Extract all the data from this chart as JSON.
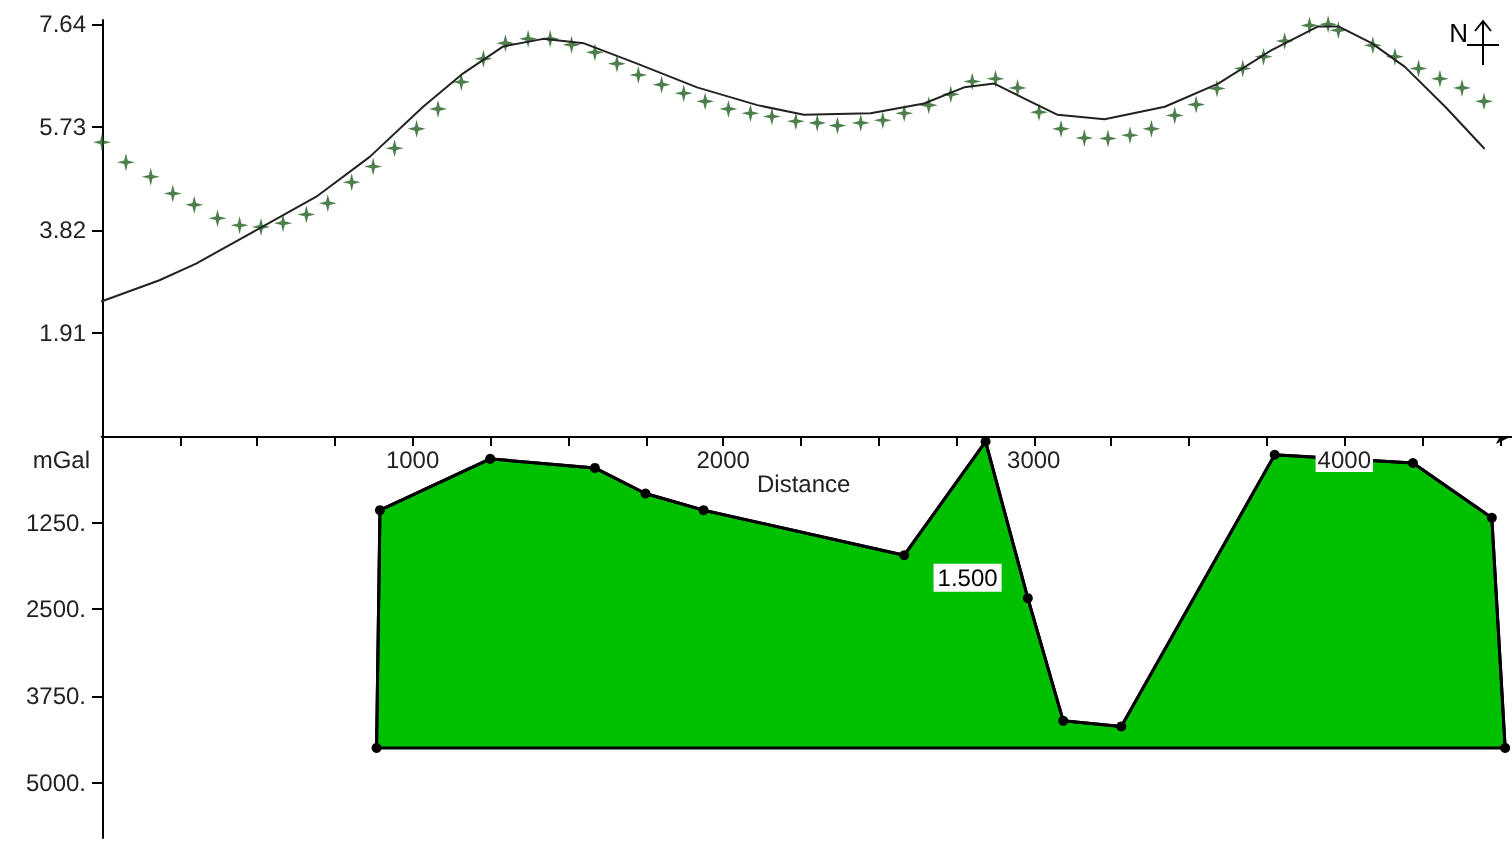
{
  "chart_data": [
    {
      "type": "scatter",
      "ylabel": "mGal",
      "xlim": [
        0,
        4540
      ],
      "xticks": [
        {
          "value": 0,
          "label": null
        },
        {
          "value": 250,
          "label": null
        },
        {
          "value": 500,
          "label": null
        },
        {
          "value": 750,
          "label": null
        },
        {
          "value": 1000,
          "label": null
        },
        {
          "value": 1250,
          "label": null
        },
        {
          "value": 1500,
          "label": null
        },
        {
          "value": 1750,
          "label": null
        },
        {
          "value": 2000,
          "label": null
        },
        {
          "value": 2250,
          "label": null
        },
        {
          "value": 2500,
          "label": null
        },
        {
          "value": 2750,
          "label": null
        },
        {
          "value": 3000,
          "label": null
        },
        {
          "value": 3250,
          "label": null
        },
        {
          "value": 3500,
          "label": null
        },
        {
          "value": 3750,
          "label": null
        },
        {
          "value": 4000,
          "label": null
        },
        {
          "value": 4250,
          "label": null
        },
        {
          "value": 4500,
          "label": null
        }
      ],
      "ylim": [
        0,
        7.72
      ],
      "yticks": [
        1.91,
        3.82,
        5.73,
        7.64
      ],
      "tick_labels": "y",
      "annotations": [
        "N"
      ],
      "series": [
        {
          "marker": "star",
          "color": "#1f5f1f",
          "x": [
            0,
            77,
            157,
            228,
            297,
            372,
            443,
            512,
            583,
            658,
            727,
            804,
            873,
            942,
            1013,
            1082,
            1157,
            1228,
            1299,
            1372,
            1443,
            1512,
            1587,
            1658,
            1727,
            1802,
            1873,
            1942,
            2017,
            2088,
            2157,
            2234,
            2303,
            2368,
            2443,
            2514,
            2583,
            2662,
            2733,
            2802,
            2877,
            2948,
            3017,
            3088,
            3163,
            3239,
            3310,
            3379,
            3454,
            3523,
            3590,
            3673,
            3740,
            3808,
            3888,
            3948,
            3981,
            4092,
            4163,
            4239,
            4308,
            4379,
            4450
          ],
          "values": [
            5.45,
            5.08,
            4.81,
            4.5,
            4.29,
            4.04,
            3.91,
            3.88,
            3.95,
            4.11,
            4.32,
            4.71,
            5.0,
            5.34,
            5.7,
            6.07,
            6.57,
            7.0,
            7.29,
            7.37,
            7.37,
            7.26,
            7.12,
            6.91,
            6.7,
            6.52,
            6.36,
            6.21,
            6.07,
            5.99,
            5.93,
            5.84,
            5.81,
            5.76,
            5.81,
            5.86,
            5.99,
            6.14,
            6.34,
            6.58,
            6.63,
            6.46,
            6.01,
            5.7,
            5.53,
            5.52,
            5.58,
            5.7,
            5.95,
            6.15,
            6.45,
            6.82,
            7.04,
            7.33,
            7.62,
            7.64,
            7.53,
            7.25,
            7.04,
            6.82,
            6.63,
            6.46,
            6.21
          ]
        },
        {
          "type": "line",
          "marker": "none",
          "line_style": "solid",
          "color": "#222222",
          "x": [
            0,
            185,
            303,
            497,
            690,
            862,
            1034,
            1163,
            1292,
            1421,
            1550,
            1723,
            1916,
            2110,
            2260,
            2475,
            2647,
            2776,
            2873,
            2970,
            3077,
            3228,
            3422,
            3594,
            3766,
            3916,
            3981,
            4088,
            4195,
            4325,
            4450
          ],
          "values": [
            2.5,
            2.89,
            3.2,
            3.82,
            4.44,
            5.18,
            6.11,
            6.73,
            7.23,
            7.37,
            7.29,
            6.91,
            6.47,
            6.14,
            5.96,
            5.99,
            6.17,
            6.47,
            6.54,
            6.26,
            5.96,
            5.88,
            6.11,
            6.54,
            7.16,
            7.6,
            7.6,
            7.29,
            6.85,
            6.11,
            5.34
          ]
        }
      ]
    },
    {
      "type": "area",
      "xlabel": "Distance",
      "xlim": [
        0,
        4540
      ],
      "xticks": [
        {
          "value": 0,
          "label": null
        },
        {
          "value": 250,
          "label": null
        },
        {
          "value": 500,
          "label": null
        },
        {
          "value": 750,
          "label": null
        },
        1000,
        {
          "value": 1250,
          "label": null
        },
        {
          "value": 1500,
          "label": null
        },
        {
          "value": 1750,
          "label": null
        },
        2000,
        {
          "value": 2250,
          "label": null
        },
        {
          "value": 2500,
          "label": null
        },
        {
          "value": 2750,
          "label": null
        },
        3000,
        {
          "value": 3250,
          "label": null
        },
        {
          "value": 3500,
          "label": null
        },
        {
          "value": 3750,
          "label": null
        },
        4000,
        {
          "value": 4250,
          "label": null
        },
        {
          "value": 4500,
          "label": null
        }
      ],
      "ylim": [
        5800,
        0
      ],
      "yticks": [
        {
          "value": 1250,
          "label": "1250."
        },
        {
          "value": 2500,
          "label": "2500."
        },
        {
          "value": 3750,
          "label": "3750."
        },
        {
          "value": 5000,
          "label": "5000."
        }
      ],
      "annotations": [
        {
          "text": "1.500",
          "x": 2787,
          "y": 2045
        }
      ],
      "series": [
        {
          "marker": "circle",
          "color": "#00c000",
          "x": [
            884,
            895,
            1250,
            1587,
            1750,
            1937,
            2583,
            2845,
            2981,
            3095,
            3282,
            3776,
            4221,
            4475,
            4518
          ],
          "values": [
            4500,
            1070,
            330,
            460,
            830,
            1070,
            1720,
            80,
            2340,
            4110,
            4190,
            270,
            390,
            1180,
            4500
          ]
        }
      ]
    }
  ]
}
